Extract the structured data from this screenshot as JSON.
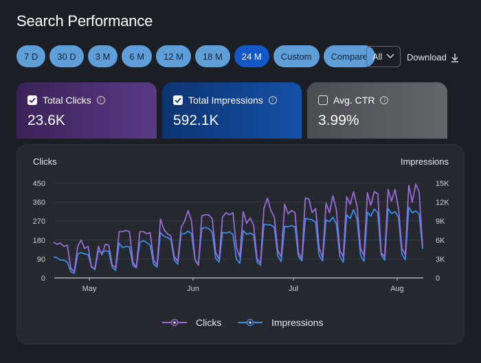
{
  "header": {
    "title": "Search Performance"
  },
  "ranges": [
    {
      "label": "7 D",
      "active": false
    },
    {
      "label": "30 D",
      "active": false
    },
    {
      "label": "3 M",
      "active": false
    },
    {
      "label": "6 M",
      "active": false
    },
    {
      "label": "12 M",
      "active": false
    },
    {
      "label": "18 M",
      "active": false
    },
    {
      "label": "24 M",
      "active": true
    },
    {
      "label": "Custom",
      "active": false
    },
    {
      "label": "Compare",
      "active": false
    }
  ],
  "filter": {
    "selected": "All"
  },
  "download": {
    "label": "Download"
  },
  "metrics": [
    {
      "label": "Total Clicks",
      "value": "23.6K",
      "checked": true
    },
    {
      "label": "Total Impressions",
      "value": "592.1K",
      "checked": true
    },
    {
      "label": "Avg. CTR",
      "value": "3.99%",
      "checked": false
    }
  ],
  "chart": {
    "left_axis_title": "Clicks",
    "right_axis_title": "Impressions",
    "legend": [
      {
        "label": "Clicks",
        "color": "#9b6bd6"
      },
      {
        "label": "Impressions",
        "color": "#3a8ee6"
      }
    ]
  },
  "chart_data": {
    "type": "line",
    "ylabel_left": "Clicks",
    "ylabel_right": "Impressions",
    "ylim_left": [
      0,
      450
    ],
    "ylim_right": [
      0,
      15000
    ],
    "y_ticks_left": [
      "0",
      "90",
      "180",
      "270",
      "360",
      "450"
    ],
    "y_ticks_right": [
      "0",
      "3K",
      "6K",
      "9K",
      "12K",
      "15K"
    ],
    "x_ticks": [
      "May",
      "Jun",
      "Jul",
      "Aug"
    ],
    "grid": true,
    "legend_position": "bottom",
    "series": [
      {
        "name": "Clicks",
        "axis": "left",
        "color": "#9b6bd6",
        "values": [
          170,
          160,
          165,
          150,
          155,
          45,
          30,
          150,
          180,
          140,
          150,
          50,
          45,
          150,
          110,
          160,
          155,
          60,
          50,
          220,
          220,
          225,
          220,
          75,
          50,
          220,
          220,
          210,
          215,
          85,
          60,
          280,
          230,
          210,
          200,
          100,
          80,
          240,
          270,
          320,
          270,
          90,
          60,
          295,
          300,
          300,
          280,
          120,
          90,
          290,
          310,
          300,
          310,
          145,
          100,
          315,
          260,
          285,
          250,
          90,
          70,
          330,
          380,
          320,
          290,
          130,
          100,
          350,
          305,
          320,
          310,
          120,
          90,
          380,
          375,
          310,
          330,
          145,
          95,
          355,
          310,
          390,
          325,
          130,
          100,
          385,
          350,
          410,
          340,
          140,
          105,
          405,
          345,
          410,
          400,
          120,
          100,
          420,
          365,
          420,
          330,
          140,
          110,
          440,
          360,
          445,
          410,
          145
        ]
      },
      {
        "name": "Impressions",
        "axis": "right",
        "color": "#3a8ee6",
        "values": [
          3350,
          3200,
          2800,
          2800,
          2500,
          1000,
          700,
          3800,
          4000,
          3800,
          3700,
          1800,
          1300,
          4300,
          4000,
          4300,
          4200,
          1700,
          1200,
          5500,
          4800,
          5000,
          4900,
          2000,
          1600,
          5600,
          5900,
          5600,
          5200,
          2200,
          1700,
          7200,
          6600,
          6400,
          6100,
          2800,
          2200,
          7000,
          7000,
          7400,
          7000,
          2800,
          2100,
          7800,
          8000,
          7800,
          7200,
          3100,
          2500,
          7200,
          7100,
          7300,
          6900,
          3000,
          2300,
          7500,
          6900,
          7100,
          6800,
          2500,
          2000,
          8500,
          8400,
          8400,
          8000,
          3500,
          2600,
          8200,
          8100,
          8300,
          8100,
          3400,
          2700,
          9400,
          9300,
          9200,
          8800,
          3500,
          2700,
          9200,
          8900,
          9600,
          8600,
          3400,
          2500,
          10000,
          9400,
          10800,
          9300,
          3600,
          2600,
          10400,
          9800,
          10900,
          10300,
          3700,
          2800,
          11000,
          10200,
          10500,
          9600,
          3800,
          2900,
          11200,
          10300,
          10600,
          10100,
          4600
        ]
      }
    ]
  }
}
